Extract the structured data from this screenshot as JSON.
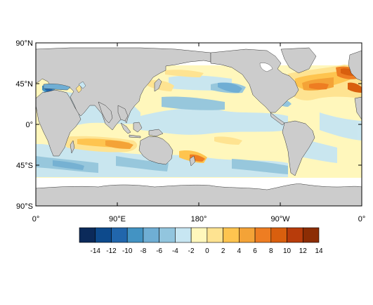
{
  "map": {
    "projection": "cylindrical-equidistant",
    "lon_range": [
      0,
      360
    ],
    "lat_range": [
      -90,
      90
    ],
    "data_lat_range": [
      -55,
      65
    ],
    "land_color": "#cccccc",
    "ocean_background": "#ffffff",
    "lat_ticks": [
      {
        "lat": 90,
        "label": "90°N"
      },
      {
        "lat": 45,
        "label": "45°N"
      },
      {
        "lat": 0,
        "label": "0°"
      },
      {
        "lat": -45,
        "label": "45°S"
      },
      {
        "lat": -90,
        "label": "90°S"
      }
    ],
    "lon_ticks": [
      {
        "lon": 0,
        "label": "0°"
      },
      {
        "lon": 90,
        "label": "90°E"
      },
      {
        "lon": 180,
        "label": "180°"
      },
      {
        "lon": 270,
        "label": "90°W"
      },
      {
        "lon": 360,
        "label": "0°"
      }
    ]
  },
  "colorbar": {
    "colors": [
      "#0b2a5a",
      "#0d4a8c",
      "#2166ac",
      "#4393c3",
      "#6faed4",
      "#92c5de",
      "#c7e6f2",
      "#fff7bc",
      "#fee391",
      "#fec44f",
      "#f4a337",
      "#ee7d22",
      "#d95f0e",
      "#b83c0b",
      "#8c2d04"
    ],
    "labels": [
      "-14",
      "-12",
      "-10",
      "-8",
      "-6",
      "-4",
      "-2",
      "0",
      "2",
      "4",
      "6",
      "8",
      "10",
      "12",
      "14"
    ]
  },
  "chart_data": {
    "type": "heatmap",
    "title": "",
    "xlabel": "",
    "ylabel": "",
    "xlim": [
      0,
      360
    ],
    "ylim": [
      -90,
      90
    ],
    "levels": [
      -14,
      -12,
      -10,
      -8,
      -6,
      -4,
      -2,
      0,
      2,
      4,
      6,
      8,
      10,
      12,
      14
    ],
    "anomaly_regions": [
      {
        "region": "North Atlantic (Gulf Stream / east of Newfoundland)",
        "sign": "positive",
        "approx_max": 12
      },
      {
        "region": "Labrador Sea",
        "sign": "positive",
        "approx_max": 8
      },
      {
        "region": "Mediterranean (western)",
        "sign": "negative",
        "approx_max": -10
      },
      {
        "region": "Kuroshio / NW Pacific",
        "sign": "positive",
        "approx_max": 4
      },
      {
        "region": "North Pacific interior",
        "sign": "negative",
        "approx_max": -4
      },
      {
        "region": "Tropical Pacific",
        "sign": "negative",
        "approx_max": -2
      },
      {
        "region": "South Indian Ocean (30°S)",
        "sign": "positive",
        "approx_max": 6
      },
      {
        "region": "Southern Ocean (Indian sector)",
        "sign": "negative",
        "approx_max": -6
      },
      {
        "region": "Tasman Sea / SW Pacific",
        "sign": "positive",
        "approx_max": 6
      }
    ]
  }
}
